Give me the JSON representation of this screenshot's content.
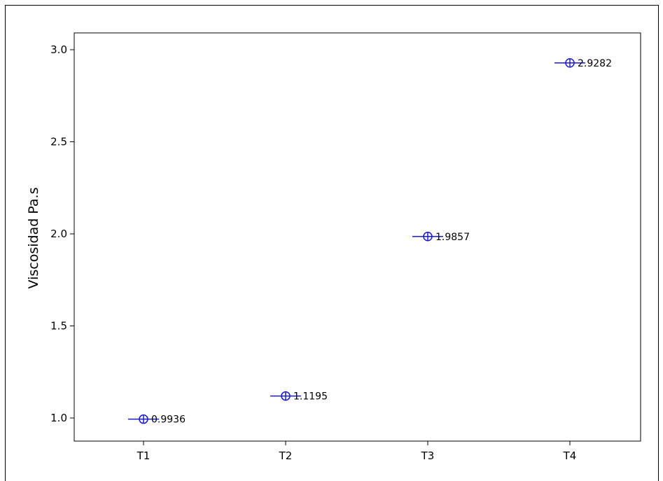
{
  "chart_data": {
    "type": "scatter",
    "ylabel": "Viscosidad Pa.s",
    "xlabel": "",
    "categories": [
      "T1",
      "T2",
      "T3",
      "T4"
    ],
    "values": [
      0.9936,
      1.1195,
      1.9857,
      2.9282
    ],
    "data_labels": [
      "0.9936",
      "1.1195",
      "1.9857",
      "2.9282"
    ],
    "yticks": [
      1.0,
      1.5,
      2.0,
      2.5,
      3.0
    ],
    "ytick_labels": [
      "1.0",
      "1.5",
      "2.0",
      "2.5",
      "3.0"
    ],
    "grid": false,
    "colors": {
      "marker": "#1a1ad0",
      "axis": "#000000"
    }
  }
}
